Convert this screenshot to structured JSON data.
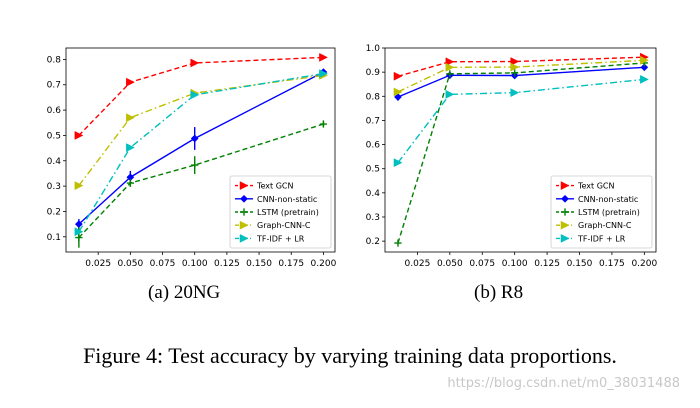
{
  "figure_caption": "Figure 4: Test accuracy by varying training data proportions.",
  "watermark": "https://blog.csdn.net/m0_38031488",
  "chart_data": [
    {
      "type": "line",
      "subcaption": "(a)  20NG",
      "xticks": [
        "0.025",
        "0.050",
        "0.075",
        "0.100",
        "0.125",
        "0.150",
        "0.175",
        "0.200"
      ],
      "yticks": [
        "0.1",
        "0.2",
        "0.3",
        "0.4",
        "0.5",
        "0.6",
        "0.7",
        "0.8"
      ],
      "xlim": [
        0.0,
        0.209
      ],
      "ylim": [
        0.04,
        0.845
      ],
      "x": [
        0.01,
        0.05,
        0.1,
        0.2
      ],
      "legend_position": "lower-right",
      "series": [
        {
          "name": "Text GCN",
          "color": "#ff0000",
          "dash": "dashed",
          "marker": "tri-right",
          "values": [
            0.5,
            0.71,
            0.786,
            0.808
          ]
        },
        {
          "name": "CNN-non-static",
          "color": "#0000ff",
          "dash": "solid",
          "marker": "diamond",
          "values": [
            0.15,
            0.335,
            0.488,
            0.75
          ],
          "errors": [
            0.02,
            0.025,
            0.045,
            0.01
          ]
        },
        {
          "name": "LSTM (pretrain)",
          "color": "#008000",
          "dash": "dashed",
          "marker": "plus",
          "values": [
            0.097,
            0.312,
            0.383,
            0.545
          ],
          "errors": [
            0.04,
            0.015,
            0.035,
            0.01
          ]
        },
        {
          "name": "Graph-CNN-C",
          "color": "#bfbf00",
          "dash": "dashdot",
          "marker": "tri-right",
          "values": [
            0.302,
            0.57,
            0.667,
            0.737
          ]
        },
        {
          "name": "TF-IDF + LR",
          "color": "#00bfbf",
          "dash": "dashdot",
          "marker": "tri-right",
          "values": [
            0.12,
            0.452,
            0.66,
            0.744
          ]
        }
      ]
    },
    {
      "type": "line",
      "subcaption": "(b)  R8",
      "xticks": [
        "0.025",
        "0.050",
        "0.075",
        "0.100",
        "0.125",
        "0.150",
        "0.175",
        "0.200"
      ],
      "yticks": [
        "0.2",
        "0.3",
        "0.4",
        "0.5",
        "0.6",
        "0.7",
        "0.8",
        "0.9",
        "1.0"
      ],
      "xlim": [
        0.0,
        0.209
      ],
      "ylim": [
        0.155,
        1.0
      ],
      "x": [
        0.01,
        0.05,
        0.1,
        0.2
      ],
      "legend_position": "lower-right",
      "series": [
        {
          "name": "Text GCN",
          "color": "#ff0000",
          "dash": "dashed",
          "marker": "tri-right",
          "values": [
            0.883,
            0.943,
            0.944,
            0.962
          ]
        },
        {
          "name": "CNN-non-static",
          "color": "#0000ff",
          "dash": "solid",
          "marker": "diamond",
          "values": [
            0.797,
            0.887,
            0.886,
            0.92
          ],
          "errors": [
            0.015,
            0.012,
            0.01,
            0.01
          ]
        },
        {
          "name": "LSTM (pretrain)",
          "color": "#008000",
          "dash": "dashed",
          "marker": "plus",
          "values": [
            0.192,
            0.893,
            0.897,
            0.938
          ]
        },
        {
          "name": "Graph-CNN-C",
          "color": "#bfbf00",
          "dash": "dashdot",
          "marker": "tri-right",
          "values": [
            0.818,
            0.92,
            0.921,
            0.949
          ]
        },
        {
          "name": "TF-IDF + LR",
          "color": "#00bfbf",
          "dash": "dashdot",
          "marker": "tri-right",
          "values": [
            0.525,
            0.808,
            0.815,
            0.87
          ]
        }
      ]
    }
  ]
}
